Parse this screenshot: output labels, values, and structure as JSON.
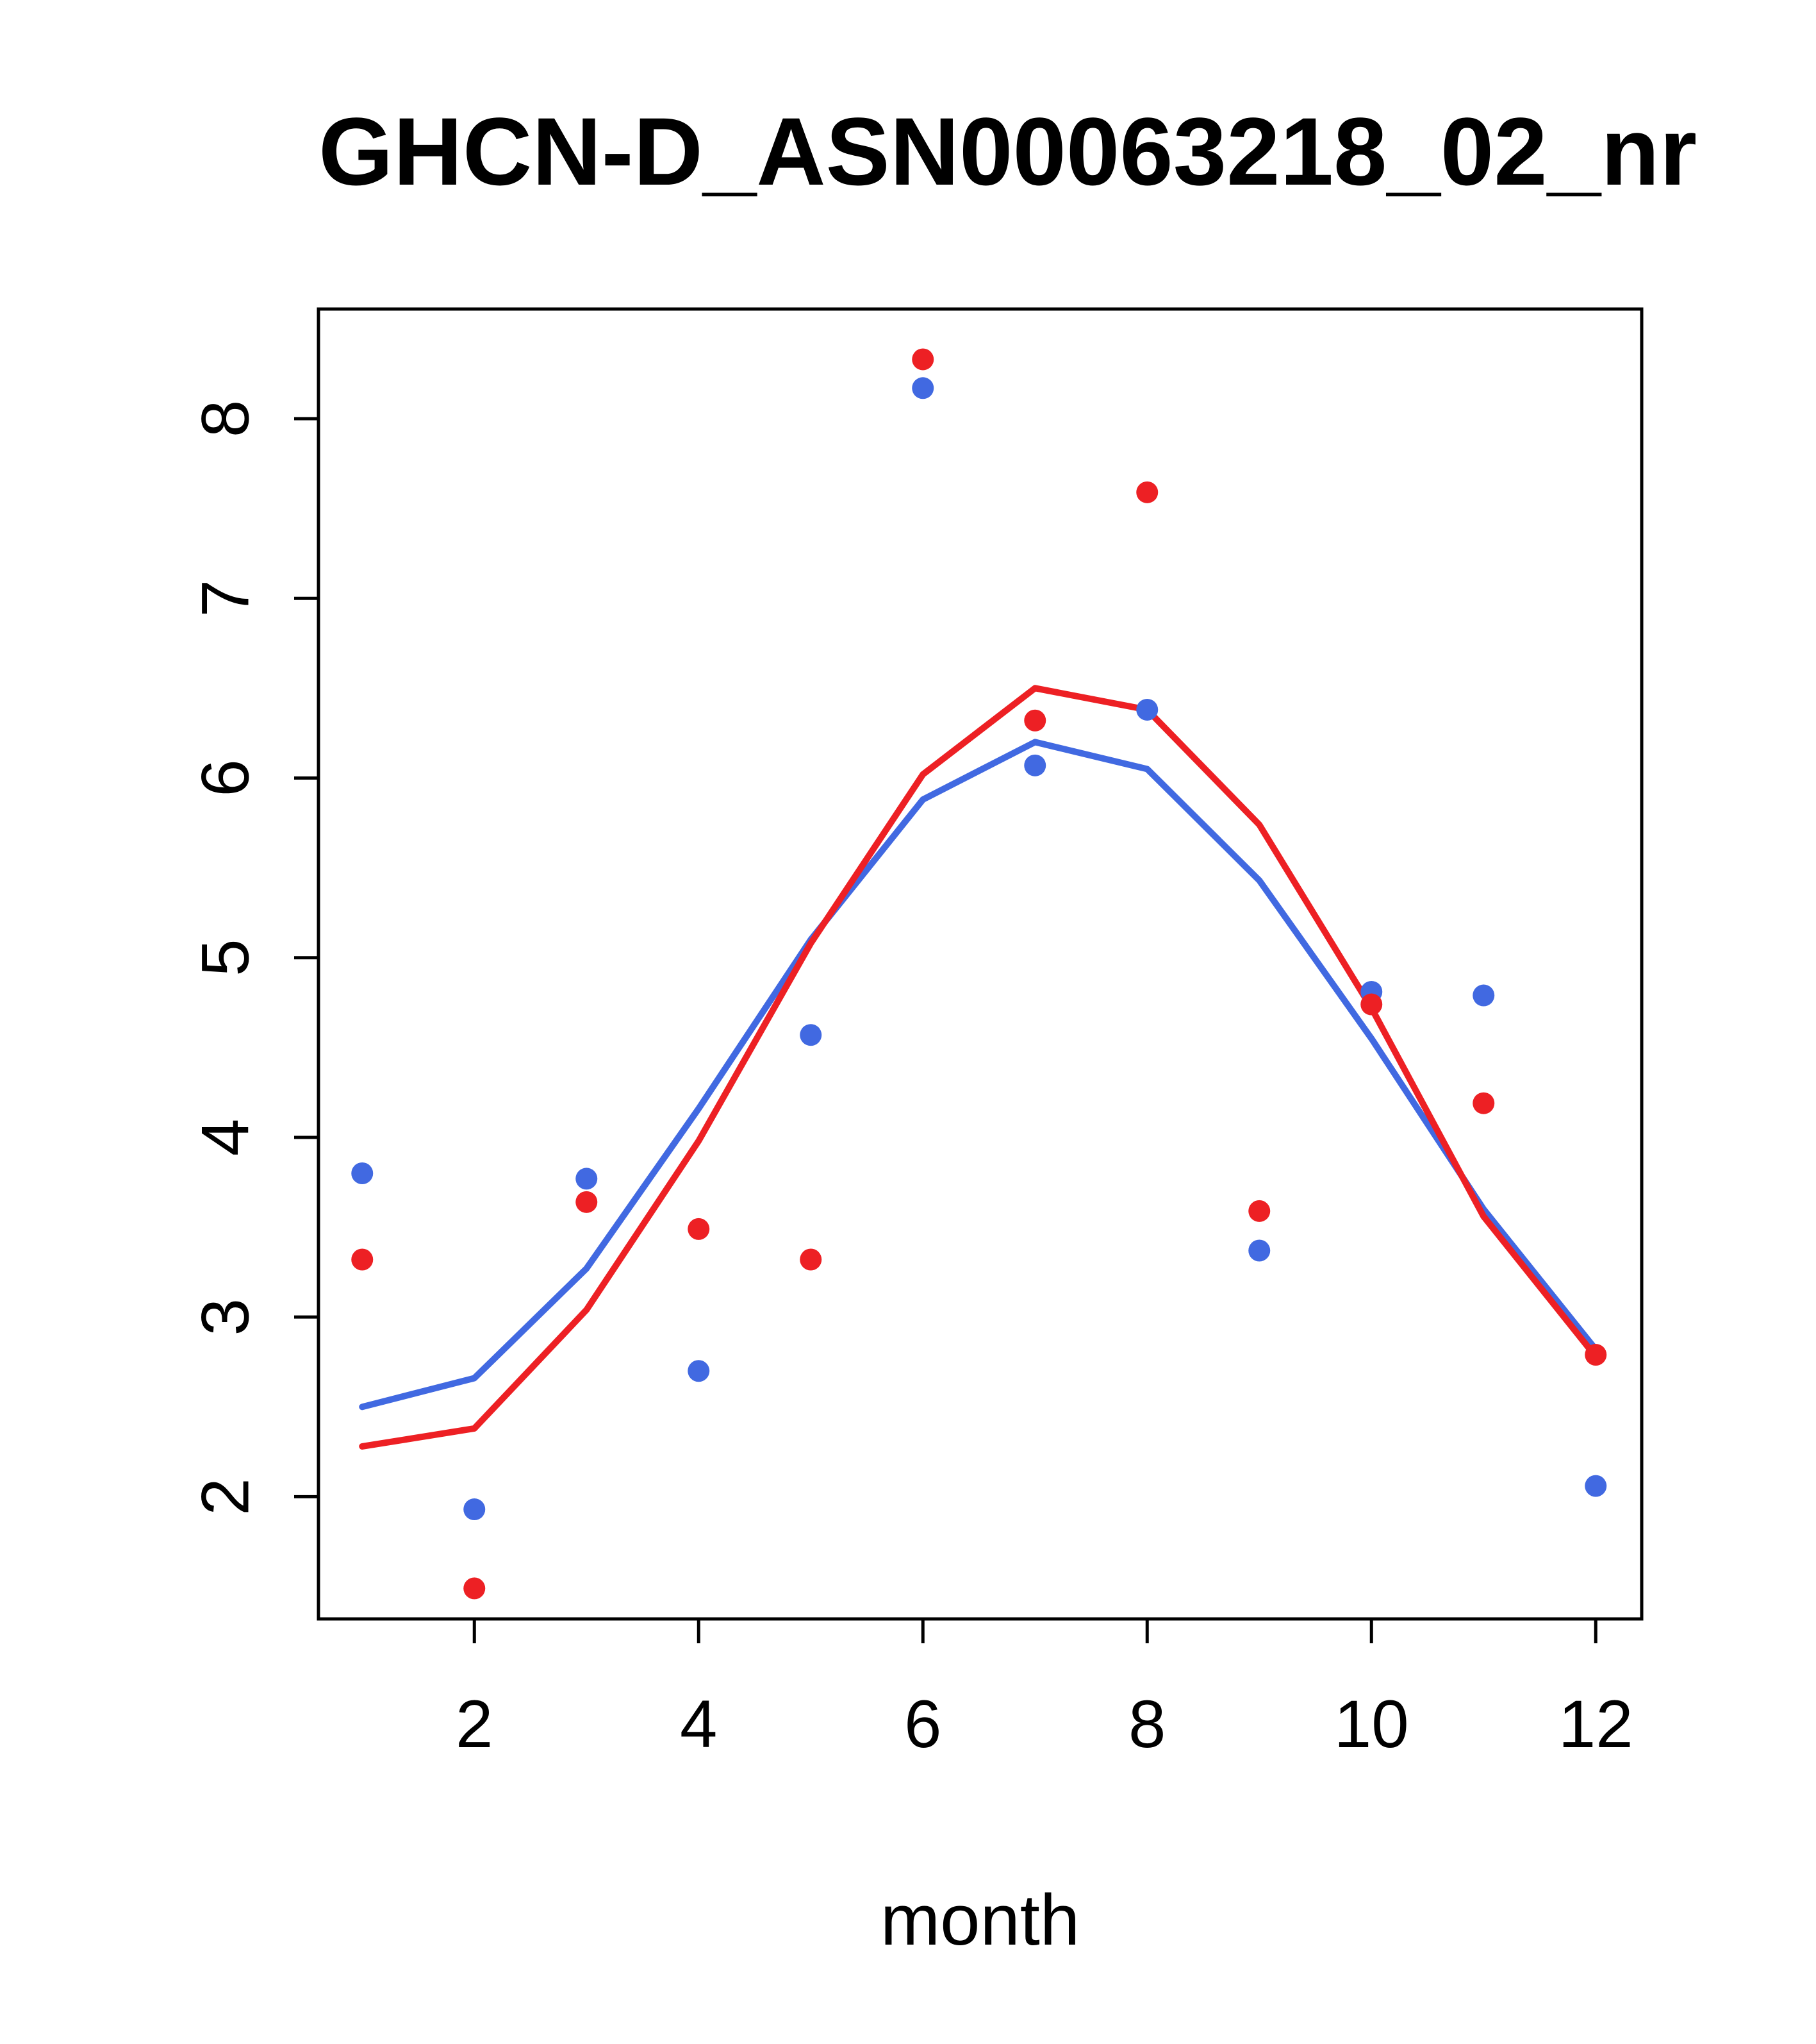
{
  "chart_data": {
    "type": "scatter",
    "title": "GHCN-D_ASN00063218_02_nr",
    "xlabel": "month",
    "ylabel": "",
    "xlim": [
      0.61,
      12.41
    ],
    "ylim": [
      1.32,
      8.61
    ],
    "x_ticks": [
      2,
      4,
      6,
      8,
      10,
      12
    ],
    "y_ticks": [
      2,
      3,
      4,
      5,
      6,
      7,
      8
    ],
    "x": [
      1,
      2,
      3,
      4,
      5,
      6,
      7,
      8,
      9,
      10,
      11,
      12
    ],
    "grid": false,
    "legend": "none",
    "frame_color": "#000000",
    "background_color": "#ffffff",
    "series": [
      {
        "name": "blue-line",
        "kind": "line",
        "color": "#4169e1",
        "values": [
          2.5,
          2.66,
          3.27,
          4.16,
          5.1,
          5.88,
          6.2,
          6.05,
          5.43,
          4.55,
          3.6,
          2.82
        ]
      },
      {
        "name": "red-line",
        "kind": "line",
        "color": "#ed2024",
        "values": [
          2.28,
          2.38,
          3.04,
          3.98,
          5.08,
          6.02,
          6.5,
          6.38,
          5.74,
          4.72,
          3.56,
          2.78
        ]
      },
      {
        "name": "blue-points",
        "kind": "points",
        "color": "#4169e1",
        "values": [
          3.8,
          1.93,
          3.77,
          2.7,
          4.57,
          8.17,
          6.07,
          6.38,
          3.37,
          4.81,
          4.79,
          2.06
        ]
      },
      {
        "name": "red-points",
        "kind": "points",
        "color": "#ed2024",
        "values": [
          3.32,
          1.49,
          3.64,
          3.49,
          3.32,
          8.33,
          6.32,
          7.59,
          3.59,
          4.74,
          4.19,
          2.79
        ]
      }
    ]
  }
}
